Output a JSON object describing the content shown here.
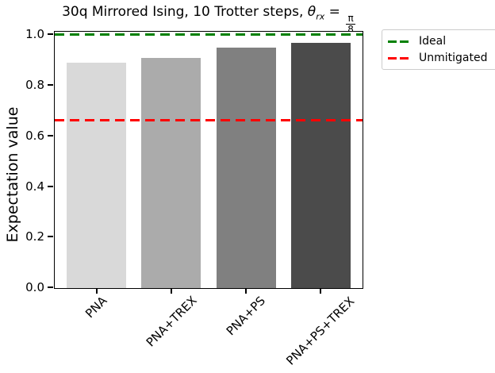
{
  "figure": {
    "title_parts": {
      "prefix": "30q Mirrored Ising, 10 Trotter steps, ",
      "theta": "θ",
      "theta_sub": "rx",
      "equals": " = ",
      "frac_num": "π",
      "frac_den": "8"
    }
  },
  "chart_data": {
    "type": "bar",
    "title": "30q Mirrored Ising, 10 Trotter steps, θ_rx = π/8",
    "categories": [
      "PNA",
      "PNA+TREX",
      "PNA+PS",
      "PNA+PS+TREX"
    ],
    "values": [
      0.89,
      0.91,
      0.95,
      0.97
    ],
    "bar_colors": [
      "#d9d9d9",
      "#ababab",
      "#808080",
      "#4b4b4b"
    ],
    "xlabel": "",
    "ylabel": "Expectation value",
    "ylim": [
      0,
      1.02
    ],
    "yticks": [
      0.0,
      0.2,
      0.4,
      0.6,
      0.8,
      1.0
    ],
    "ytick_labels": [
      "0.0",
      "0.2",
      "0.4",
      "0.6",
      "0.8",
      "1.0"
    ],
    "grid": false,
    "legend_position": "outside upper right",
    "ref_lines": [
      {
        "name": "ideal",
        "label": "Ideal",
        "value": 1.0,
        "color": "#008000",
        "linestyle": "dashed"
      },
      {
        "name": "unmitigated",
        "label": "Unmitigated",
        "value": 0.66,
        "color": "#ff0000",
        "linestyle": "dashed"
      }
    ],
    "legend_entries": [
      {
        "label": "Ideal",
        "color": "#008000"
      },
      {
        "label": "Unmitigated",
        "color": "#ff0000"
      }
    ]
  }
}
